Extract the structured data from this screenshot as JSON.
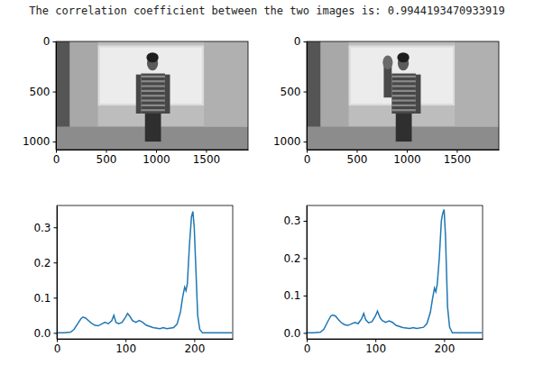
{
  "title": "The correlation coefficient between the two images is: 0.9944193470933919",
  "chart_data": [
    {
      "type": "image",
      "xlim": [
        0,
        1920
      ],
      "ylim": [
        1080,
        0
      ],
      "xticks": [
        0,
        500,
        1000,
        1500
      ],
      "yticks": [
        0,
        500,
        1000
      ]
    },
    {
      "type": "image",
      "xlim": [
        0,
        1920
      ],
      "ylim": [
        1080,
        0
      ],
      "xticks": [
        0,
        500,
        1000,
        1500
      ],
      "yticks": [
        0,
        500,
        1000
      ]
    },
    {
      "type": "line",
      "color": "#1f77b4",
      "x": [
        0,
        10,
        20,
        25,
        30,
        35,
        38,
        42,
        46,
        50,
        55,
        60,
        65,
        70,
        75,
        80,
        83,
        86,
        90,
        95,
        100,
        103,
        107,
        110,
        115,
        120,
        125,
        130,
        140,
        150,
        155,
        160,
        170,
        175,
        180,
        183,
        186,
        188,
        190,
        193,
        196,
        198,
        200,
        202,
        205,
        208,
        212,
        230,
        255
      ],
      "values": [
        0,
        0,
        0.002,
        0.01,
        0.025,
        0.04,
        0.045,
        0.042,
        0.035,
        0.028,
        0.022,
        0.02,
        0.025,
        0.03,
        0.026,
        0.035,
        0.05,
        0.03,
        0.026,
        0.03,
        0.045,
        0.055,
        0.045,
        0.035,
        0.03,
        0.035,
        0.03,
        0.022,
        0.015,
        0.012,
        0.015,
        0.012,
        0.015,
        0.025,
        0.06,
        0.1,
        0.13,
        0.12,
        0.14,
        0.25,
        0.33,
        0.345,
        0.3,
        0.2,
        0.05,
        0.01,
        0,
        0,
        0
      ],
      "xlim": [
        0,
        256
      ],
      "ylim": [
        -0.017,
        0.362
      ],
      "xticks": [
        0,
        100,
        200
      ],
      "yticks": [
        {
          "value": 0,
          "label": "0.0"
        },
        {
          "value": 0.1,
          "label": "0.1"
        },
        {
          "value": 0.2,
          "label": "0.2"
        },
        {
          "value": 0.3,
          "label": "0.3"
        }
      ]
    },
    {
      "type": "line",
      "color": "#1f77b4",
      "x": [
        0,
        10,
        20,
        25,
        30,
        35,
        38,
        42,
        46,
        50,
        55,
        60,
        65,
        70,
        75,
        80,
        83,
        86,
        90,
        95,
        100,
        103,
        107,
        110,
        115,
        120,
        125,
        130,
        140,
        150,
        155,
        160,
        170,
        175,
        180,
        183,
        186,
        188,
        190,
        193,
        196,
        198,
        200,
        202,
        205,
        208,
        212,
        230,
        255
      ],
      "values": [
        0,
        0,
        0.002,
        0.01,
        0.028,
        0.045,
        0.048,
        0.045,
        0.036,
        0.028,
        0.022,
        0.02,
        0.024,
        0.028,
        0.025,
        0.038,
        0.052,
        0.035,
        0.027,
        0.03,
        0.045,
        0.058,
        0.04,
        0.033,
        0.028,
        0.032,
        0.028,
        0.02,
        0.014,
        0.012,
        0.014,
        0.012,
        0.015,
        0.025,
        0.055,
        0.09,
        0.12,
        0.11,
        0.13,
        0.2,
        0.3,
        0.32,
        0.33,
        0.26,
        0.07,
        0.015,
        0,
        0,
        0
      ],
      "xlim": [
        0,
        256
      ],
      "ylim": [
        -0.016,
        0.341
      ],
      "xticks": [
        0,
        100,
        200
      ],
      "yticks": [
        {
          "value": 0,
          "label": "0.0"
        },
        {
          "value": 0.1,
          "label": "0.1"
        },
        {
          "value": 0.2,
          "label": "0.2"
        },
        {
          "value": 0.3,
          "label": "0.3"
        }
      ]
    }
  ]
}
